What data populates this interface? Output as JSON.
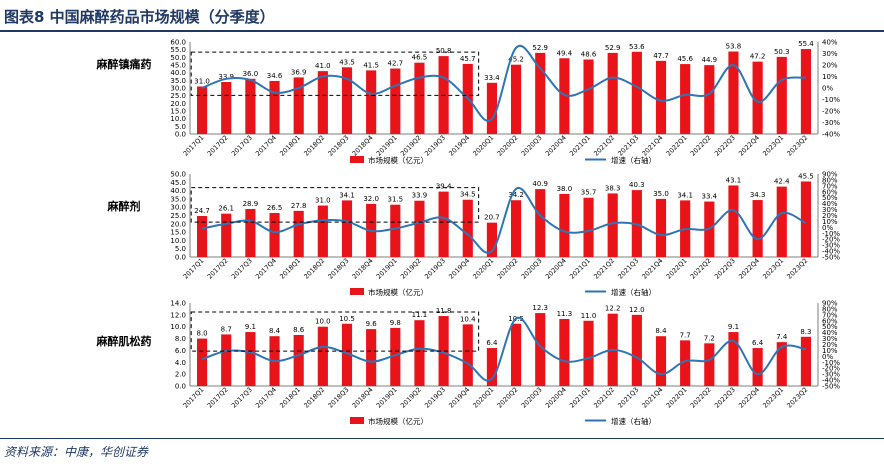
{
  "figure": {
    "title": "图表8 中国麻醉药品市场规模（分季度）",
    "source": "资料来源：中康，华创证券"
  },
  "colors": {
    "bar": "#e8141a",
    "line": "#2e75b6",
    "text": "#1f3864"
  },
  "chart_data": [
    {
      "type": "bar",
      "panel_label": "麻醉镇痛药",
      "categories": [
        "2017Q1",
        "2017Q2",
        "2017Q3",
        "2017Q4",
        "2018Q1",
        "2018Q2",
        "2018Q3",
        "2018Q4",
        "2019Q1",
        "2019Q2",
        "2019Q3",
        "2019Q4",
        "2020Q1",
        "2020Q2",
        "2020Q3",
        "2020Q4",
        "2021Q1",
        "2021Q2",
        "2021Q3",
        "2021Q4",
        "2022Q1",
        "2022Q2",
        "2022Q3",
        "2022Q4",
        "2023Q1",
        "2023Q2"
      ],
      "series": [
        {
          "name": "市场规模（亿元）",
          "axis": "left",
          "values": [
            31.0,
            33.9,
            36.0,
            34.6,
            36.9,
            41.0,
            43.5,
            41.5,
            42.7,
            46.5,
            50.8,
            45.7,
            33.4,
            45.2,
            52.9,
            49.4,
            48.6,
            52.9,
            53.6,
            47.7,
            45.6,
            44.9,
            53.8,
            47.2,
            50.3,
            55.4
          ]
        },
        {
          "name": "增速（右轴）",
          "axis": "right",
          "values": [
            0,
            8,
            7,
            -4,
            0,
            10,
            8,
            -5,
            2,
            9,
            9,
            -9,
            -27,
            35,
            17,
            -6,
            -1,
            9,
            1,
            -11,
            -6,
            -5,
            20,
            -12,
            7,
            9
          ]
        }
      ],
      "labels": [
        "31.0",
        "33.9",
        "36.0",
        "34.6",
        "36.9",
        "41.0",
        "43.5",
        "41.5",
        "42.7",
        "46.5",
        "50.8",
        "45.7",
        "33.4",
        "45.2",
        "52.9",
        "49.4",
        "48.6",
        "52.9",
        "53.6",
        "47.7",
        "45.6",
        "44.9",
        "53.8",
        "47.2",
        "50.3",
        "55.4"
      ],
      "ylim_left": [
        0,
        60
      ],
      "yticks_left": [
        "0.0",
        "5.0",
        "10.0",
        "15.0",
        "20.0",
        "25.0",
        "30.0",
        "35.0",
        "40.0",
        "45.0",
        "50.0",
        "55.0",
        "60.0"
      ],
      "ylim_right": [
        -40,
        40
      ],
      "yticks_right": [
        "-40%",
        "-30%",
        "-20%",
        "-10%",
        "0%",
        "10%",
        "20%",
        "30%",
        "40%"
      ]
    },
    {
      "type": "bar",
      "panel_label": "麻醉剂",
      "categories": [
        "2017Q1",
        "2017Q2",
        "2017Q3",
        "2017Q4",
        "2018Q1",
        "2018Q2",
        "2018Q3",
        "2018Q4",
        "2019Q1",
        "2019Q2",
        "2019Q3",
        "2019Q4",
        "2020Q1",
        "2020Q2",
        "2020Q3",
        "2020Q4",
        "2021Q1",
        "2021Q2",
        "2021Q3",
        "2021Q4",
        "2022Q1",
        "2022Q2",
        "2022Q3",
        "2022Q4",
        "2023Q1",
        "2023Q2"
      ],
      "series": [
        {
          "name": "市场规模（亿元）",
          "axis": "left",
          "values": [
            24.7,
            26.1,
            28.9,
            26.5,
            27.8,
            31.0,
            34.1,
            32.0,
            31.5,
            33.9,
            39.4,
            34.5,
            20.7,
            34.2,
            40.9,
            38.0,
            35.7,
            38.3,
            40.3,
            35.0,
            34.1,
            33.4,
            43.1,
            34.3,
            42.4,
            45.5
          ]
        },
        {
          "name": "增速（右轴）",
          "axis": "right",
          "values": [
            -2,
            6,
            11,
            -8,
            5,
            12,
            10,
            -6,
            -2,
            8,
            16,
            -12,
            -40,
            65,
            20,
            -7,
            -6,
            7,
            5,
            -13,
            -3,
            -2,
            29,
            -20,
            24,
            7
          ]
        }
      ],
      "labels": [
        "24.7",
        "26.1",
        "28.9",
        "26.5",
        "27.8",
        "31.0",
        "34.1",
        "32.0",
        "31.5",
        "33.9",
        "39.4",
        "34.5",
        "20.7",
        "34.2",
        "40.9",
        "38.0",
        "35.7",
        "38.3",
        "40.3",
        "35.0",
        "34.1",
        "33.4",
        "43.1",
        "34.3",
        "42.4",
        "45.5"
      ],
      "ylim_left": [
        0,
        50
      ],
      "yticks_left": [
        "0.0",
        "5.0",
        "10.0",
        "15.0",
        "20.0",
        "25.0",
        "30.0",
        "35.0",
        "40.0",
        "45.0",
        "50.0"
      ],
      "ylim_right": [
        -50,
        90
      ],
      "yticks_right": [
        "-50%",
        "-40%",
        "-30%",
        "-20%",
        "-10%",
        "0%",
        "10%",
        "20%",
        "30%",
        "40%",
        "50%",
        "60%",
        "70%",
        "80%",
        "90%"
      ]
    },
    {
      "type": "bar",
      "panel_label": "麻醉肌松药",
      "categories": [
        "2017Q1",
        "2017Q2",
        "2017Q3",
        "2017Q4",
        "2018Q1",
        "2018Q2",
        "2018Q3",
        "2018Q4",
        "2019Q1",
        "2019Q2",
        "2019Q3",
        "2019Q4",
        "2020Q1",
        "2020Q2",
        "2020Q3",
        "2020Q4",
        "2021Q1",
        "2021Q2",
        "2021Q3",
        "2021Q4",
        "2022Q1",
        "2022Q2",
        "2022Q3",
        "2022Q4",
        "2023Q1",
        "2023Q2"
      ],
      "series": [
        {
          "name": "市场规模（亿元）",
          "axis": "left",
          "values": [
            8.0,
            8.7,
            9.1,
            8.4,
            8.6,
            10.0,
            10.5,
            9.6,
            9.8,
            11.1,
            11.8,
            10.4,
            6.4,
            10.5,
            12.3,
            11.3,
            11.0,
            12.2,
            12.0,
            8.4,
            7.7,
            7.2,
            9.1,
            6.4,
            7.4,
            8.3
          ]
        },
        {
          "name": "增速（右轴）",
          "axis": "right",
          "values": [
            -5,
            9,
            7,
            -8,
            2,
            16,
            5,
            -9,
            2,
            13,
            6,
            -12,
            -38,
            64,
            17,
            -8,
            -3,
            11,
            -2,
            -30,
            -8,
            -6,
            26,
            -30,
            16,
            12
          ]
        }
      ],
      "labels": [
        "8.0",
        "8.7",
        "9.1",
        "8.4",
        "8.6",
        "10.0",
        "10.5",
        "9.6",
        "9.8",
        "11.1",
        "11.8",
        "10.4",
        "6.4",
        "10.5",
        "12.3",
        "11.3",
        "11.0",
        "12.2",
        "12.0",
        "8.4",
        "7.7",
        "7.2",
        "9.1",
        "6.4",
        "7.4",
        "8.3"
      ],
      "ylim_left": [
        0,
        14
      ],
      "yticks_left": [
        "0.0",
        "2.0",
        "4.0",
        "6.0",
        "8.0",
        "10.0",
        "12.0",
        "14.0"
      ],
      "ylim_right": [
        -50,
        90
      ],
      "yticks_right": [
        "-50%",
        "-40%",
        "-30%",
        "-20%",
        "-10%",
        "0%",
        "10%",
        "20%",
        "30%",
        "40%",
        "50%",
        "60%",
        "70%",
        "80%",
        "90%"
      ]
    }
  ]
}
